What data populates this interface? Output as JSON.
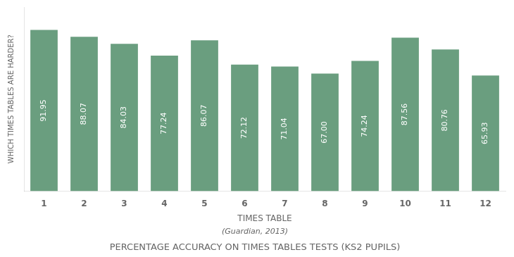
{
  "chart_data": {
    "type": "bar",
    "title": "PERCENTAGE ACCURACY ON TIMES TABLES TESTS (KS2 PUPILS)",
    "subtitle": "(Guardian, 2013)",
    "xlabel": "TIMES TABLE",
    "ylabel": "WHICH TIMES TABLES ARE HARDER?",
    "categories": [
      1,
      2,
      3,
      4,
      5,
      6,
      7,
      8,
      9,
      10,
      11,
      12
    ],
    "values": [
      91.95,
      88.07,
      84.03,
      77.24,
      86.07,
      72.12,
      71.04,
      67.0,
      74.24,
      87.56,
      80.76,
      65.93
    ],
    "value_labels": [
      "91.95",
      "88.07",
      "84.03",
      "77.24",
      "86.07",
      "72.12",
      "71.04",
      "67.00",
      "74.24",
      "87.56",
      "80.76",
      "65.93"
    ],
    "color": "#6a9e7f",
    "ylim": [
      0,
      105
    ],
    "grid": false,
    "data_labels": true,
    "tick_labels": "x"
  }
}
